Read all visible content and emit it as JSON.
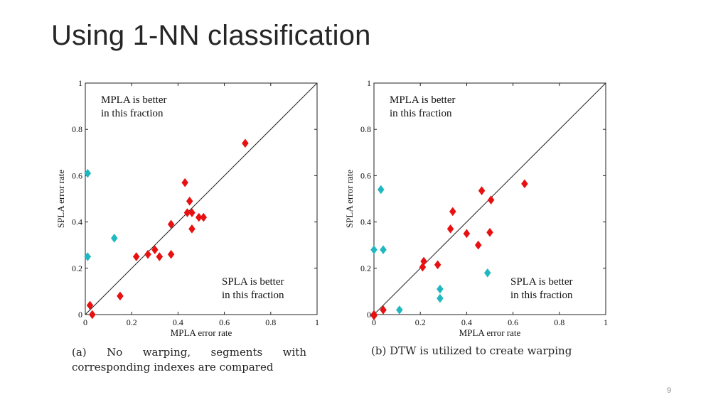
{
  "slide": {
    "title": "Using 1-NN classification",
    "page_number": "9"
  },
  "colors": {
    "red": "#e81010",
    "cyan": "#20b8c0",
    "axis": "#222222"
  },
  "chart_data": [
    {
      "type": "scatter",
      "caption": "(a) No warping, segments with corresponding indexes are compared",
      "xlabel": "MPLA error rate",
      "ylabel": "SPLA error rate",
      "xlim": [
        0,
        1
      ],
      "ylim": [
        0,
        1
      ],
      "ticks": [
        "0",
        "0.2",
        "0.4",
        "0.6",
        "0.8",
        "1"
      ],
      "diagonal": true,
      "annotations": [
        {
          "text": "MPLA is better",
          "line2": "in this fraction",
          "position": "top-left"
        },
        {
          "text": "SPLA is better",
          "line2": "in this fraction",
          "position": "bottom-right"
        }
      ],
      "series": [
        {
          "color": "red",
          "points": [
            [
              0.69,
              0.74
            ],
            [
              0.43,
              0.57
            ],
            [
              0.45,
              0.49
            ],
            [
              0.44,
              0.44
            ],
            [
              0.46,
              0.44
            ],
            [
              0.49,
              0.42
            ],
            [
              0.51,
              0.42
            ],
            [
              0.37,
              0.39
            ],
            [
              0.46,
              0.37
            ],
            [
              0.3,
              0.28
            ],
            [
              0.27,
              0.26
            ],
            [
              0.37,
              0.26
            ],
            [
              0.22,
              0.25
            ],
            [
              0.32,
              0.25
            ],
            [
              0.15,
              0.08
            ],
            [
              0.02,
              0.04
            ],
            [
              0.03,
              0.0
            ]
          ]
        },
        {
          "color": "cyan",
          "points": [
            [
              0.01,
              0.61
            ],
            [
              0.125,
              0.33
            ],
            [
              0.01,
              0.25
            ]
          ]
        }
      ]
    },
    {
      "type": "scatter",
      "caption": "(b) DTW is utilized to create warping",
      "xlabel": "MPLA error rate",
      "ylabel": "SPLA error rate",
      "xlim": [
        0,
        1
      ],
      "ylim": [
        0,
        1
      ],
      "ticks": [
        "0",
        "0.2",
        "0.4",
        "0.6",
        "0.8",
        "1"
      ],
      "diagonal": true,
      "annotations": [
        {
          "text": "MPLA is better",
          "line2": "in this fraction",
          "position": "top-left"
        },
        {
          "text": "SPLA is better",
          "line2": "in this fraction",
          "position": "bottom-right"
        }
      ],
      "series": [
        {
          "color": "red",
          "points": [
            [
              0.65,
              0.565
            ],
            [
              0.465,
              0.535
            ],
            [
              0.505,
              0.495
            ],
            [
              0.34,
              0.445
            ],
            [
              0.33,
              0.37
            ],
            [
              0.4,
              0.35
            ],
            [
              0.5,
              0.355
            ],
            [
              0.45,
              0.3
            ],
            [
              0.215,
              0.23
            ],
            [
              0.21,
              0.205
            ],
            [
              0.275,
              0.215
            ],
            [
              0.04,
              0.02
            ],
            [
              0.0,
              0.0
            ],
            [
              0.0,
              -0.005
            ]
          ]
        },
        {
          "color": "cyan",
          "points": [
            [
              0.03,
              0.54
            ],
            [
              0.0,
              0.28
            ],
            [
              0.04,
              0.28
            ],
            [
              0.49,
              0.18
            ],
            [
              0.285,
              0.11
            ],
            [
              0.285,
              0.07
            ],
            [
              0.11,
              0.02
            ]
          ]
        }
      ]
    }
  ]
}
